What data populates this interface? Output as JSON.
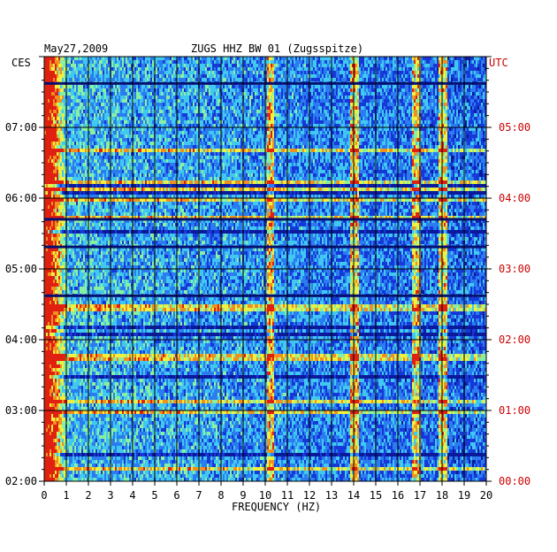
{
  "header": {
    "date": "May27,2009",
    "station": "ZUGS HHZ BW 01 (Zugsspitze)"
  },
  "chart_data": {
    "type": "heatmap",
    "title": "ZUGS HHZ BW 01 (Zugsspitze)",
    "xlabel": "FREQUENCY (HZ)",
    "xlim": [
      0,
      20
    ],
    "x_ticks": [
      "0",
      "1",
      "2",
      "3",
      "4",
      "5",
      "6",
      "7",
      "8",
      "9",
      "10",
      "11",
      "12",
      "13",
      "14",
      "15",
      "16",
      "17",
      "18",
      "19",
      "20"
    ],
    "left_axis": {
      "label": "CES",
      "ticks": [
        {
          "label": "07:00",
          "hour_utc": 5
        },
        {
          "label": "06:00",
          "hour_utc": 4
        },
        {
          "label": "05:00",
          "hour_utc": 3
        },
        {
          "label": "04:00",
          "hour_utc": 2
        },
        {
          "label": "03:00",
          "hour_utc": 1
        },
        {
          "label": "02:00",
          "hour_utc": 0
        }
      ]
    },
    "right_axis": {
      "label": "UTC",
      "ticks": [
        {
          "label": "05:00",
          "hour_utc": 5
        },
        {
          "label": "04:00",
          "hour_utc": 4
        },
        {
          "label": "03:00",
          "hour_utc": 3
        },
        {
          "label": "02:00",
          "hour_utc": 2
        },
        {
          "label": "01:00",
          "hour_utc": 1
        },
        {
          "label": "00:00",
          "hour_utc": 0
        }
      ]
    },
    "time_range_utc_hours": [
      0,
      6
    ],
    "colormap": [
      "#0a1a9a",
      "#1638d8",
      "#2a7cf0",
      "#40c8f0",
      "#88f0a0",
      "#f0f040",
      "#f09020",
      "#e02010"
    ],
    "spectral_lines_hz": [
      14.0,
      10.2,
      16.8,
      18.0
    ],
    "grid": true
  },
  "colors": {
    "axis_left_text": "#000000",
    "axis_right_text": "#cc0000",
    "grid": "#000000"
  }
}
